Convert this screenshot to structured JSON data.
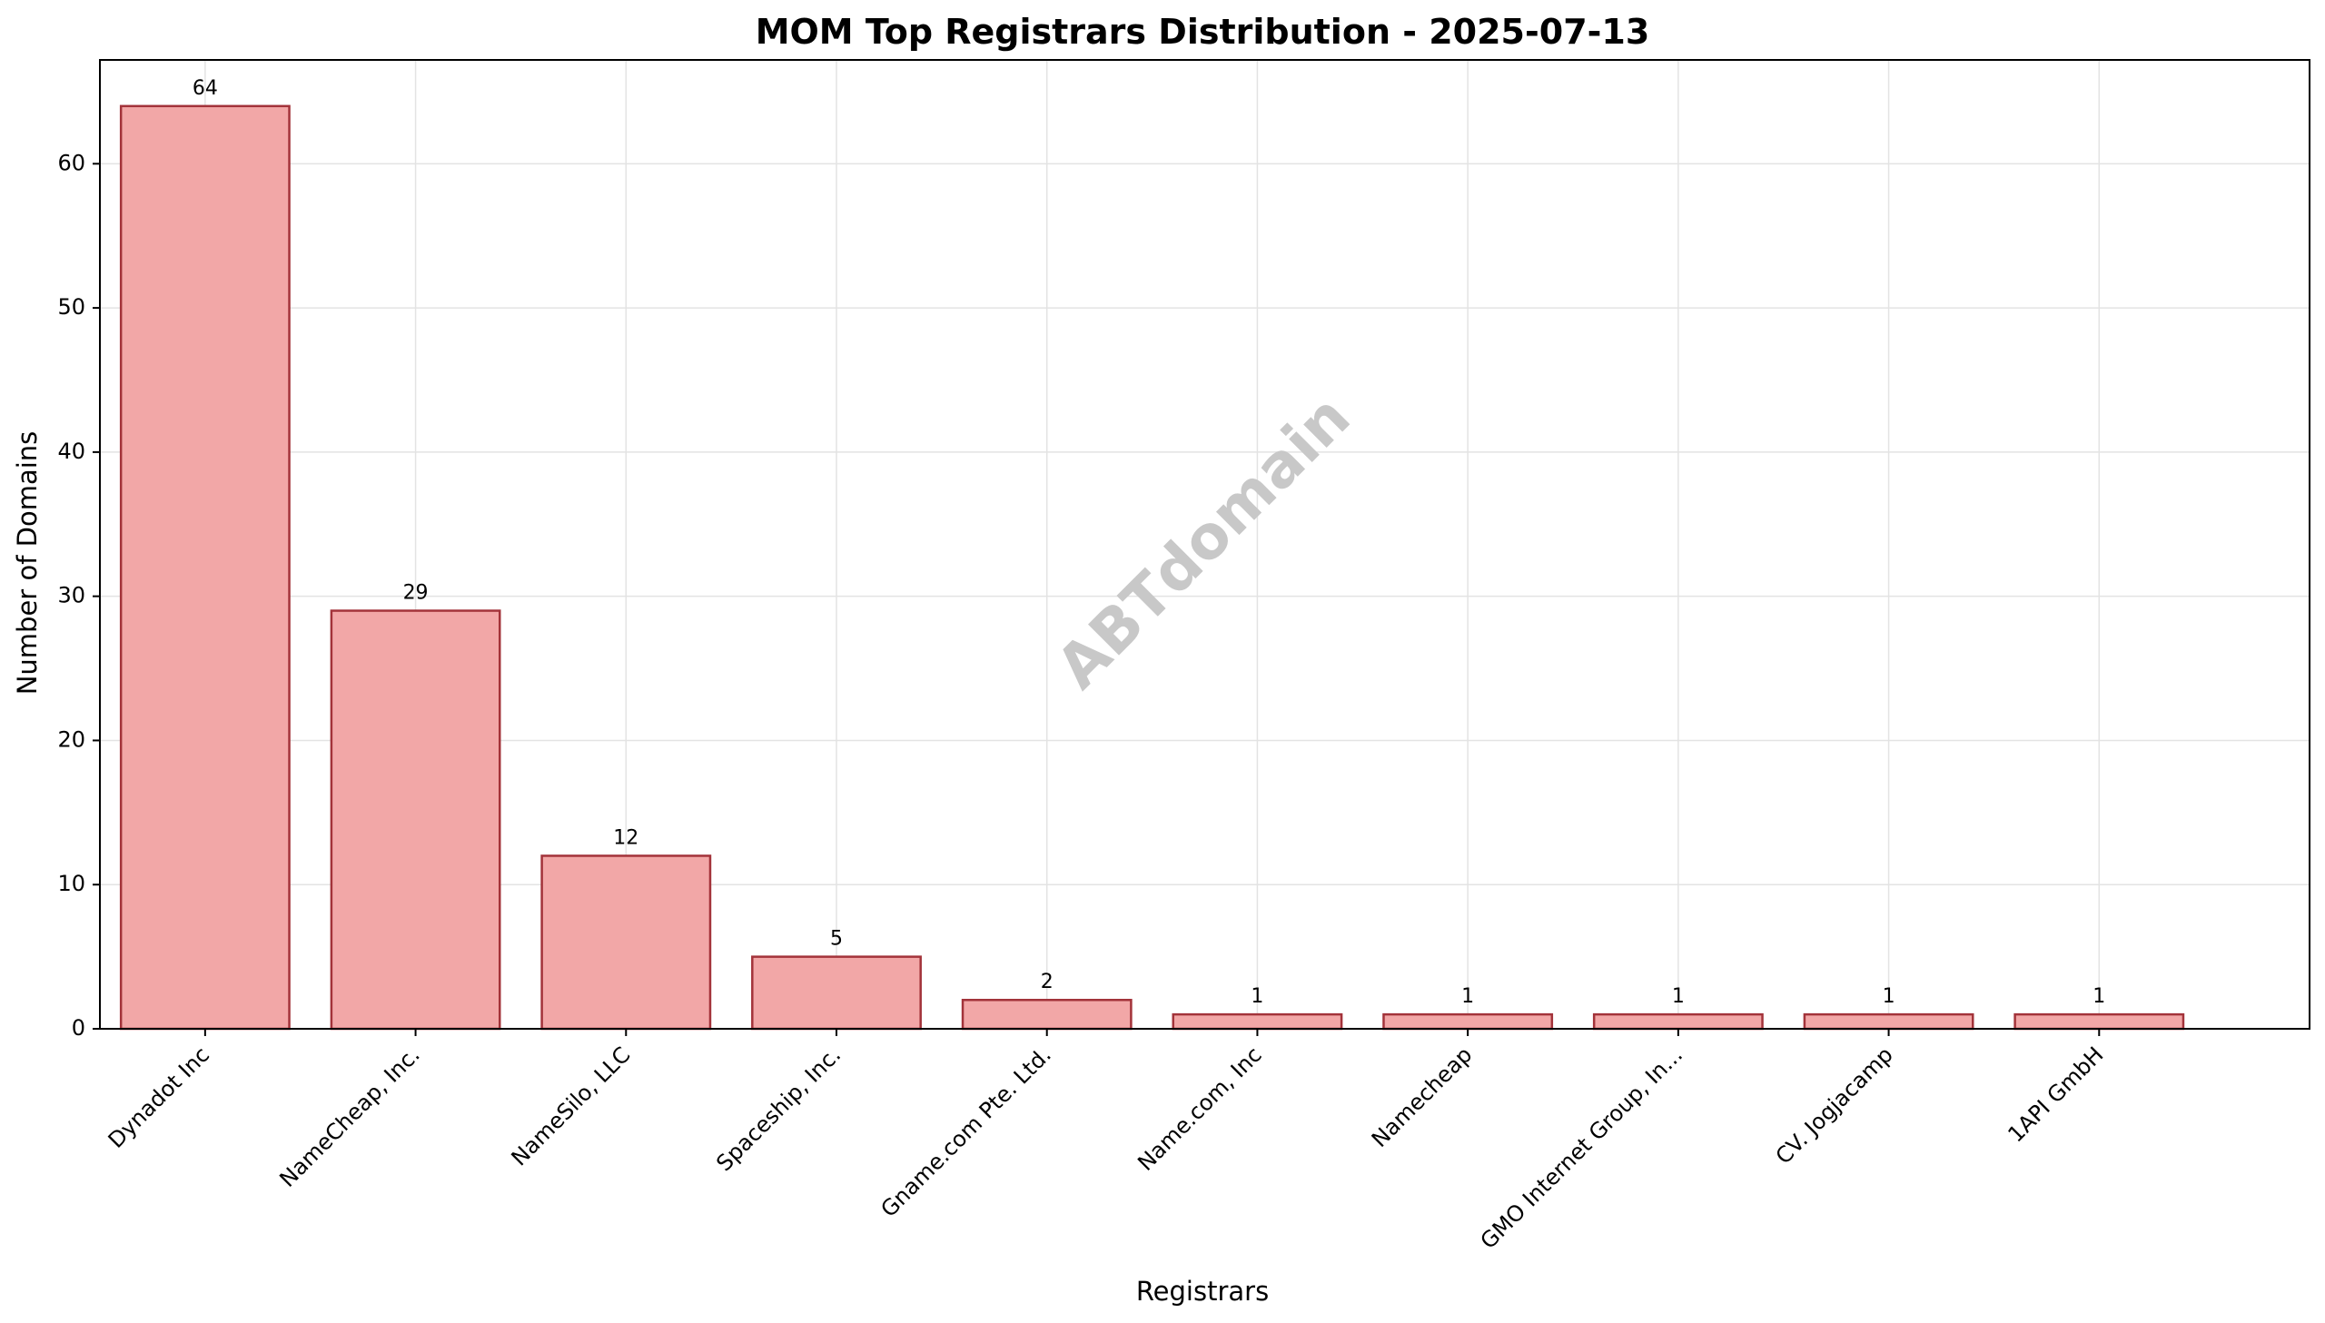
{
  "chart_data": {
    "type": "bar",
    "title": "MOM Top Registrars Distribution - 2025-07-13",
    "xlabel": "Registrars",
    "ylabel": "Number of Domains",
    "categories": [
      "Dynadot Inc",
      "NameCheap, Inc.",
      "NameSilo, LLC",
      "Spaceship, Inc.",
      "Gname.com Pte. Ltd.",
      "Name.com, Inc",
      "Namecheap",
      "GMO Internet Group, In...",
      "CV. Jogjacamp",
      "1API GmbH"
    ],
    "values": [
      64,
      29,
      12,
      5,
      2,
      1,
      1,
      1,
      1,
      1
    ],
    "data_labels": [
      "64",
      "29",
      "12",
      "5",
      "2",
      "1",
      "1",
      "1",
      "1",
      "1"
    ],
    "ylim": [
      0,
      67.2
    ],
    "yticks": [
      0,
      10,
      20,
      30,
      40,
      50,
      60
    ],
    "grid": true,
    "watermark": "ABTdomain",
    "colors": {
      "bar_fill": "#f2a7a7",
      "bar_edge": "#a3333a",
      "grid": "#e3e3e3",
      "axis": "#000000",
      "watermark": "#c8c8c8"
    }
  }
}
